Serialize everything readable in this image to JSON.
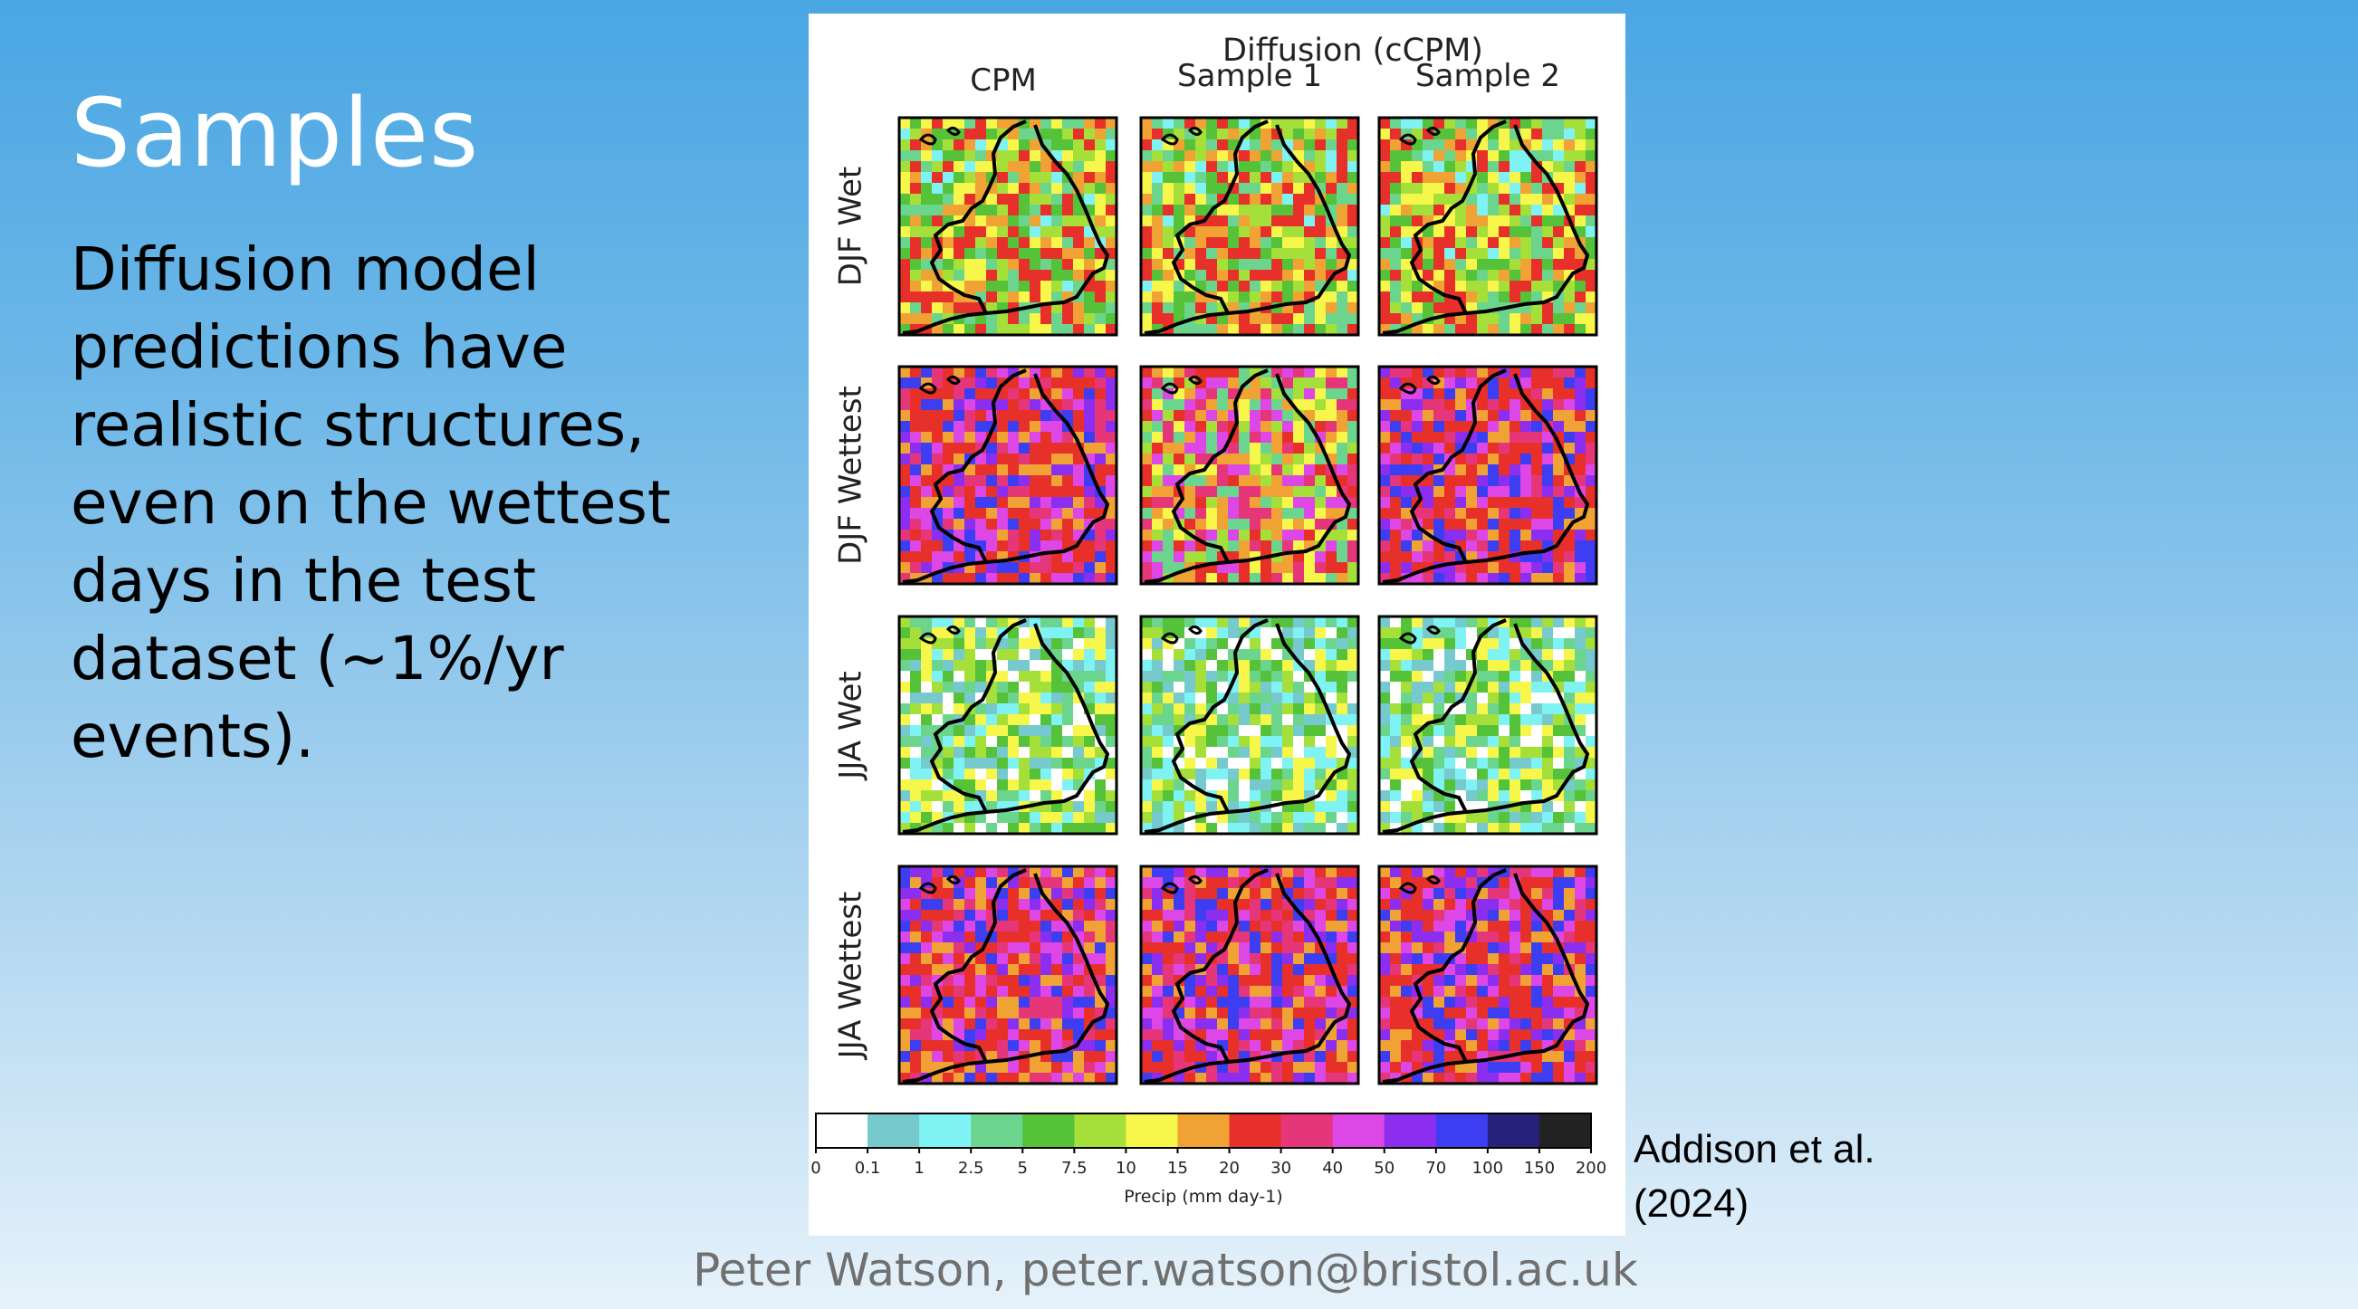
{
  "slide": {
    "title": "Samples",
    "body_lines": [
      "Diffusion model",
      "predictions have",
      "realistic structures,",
      "even on the wettest",
      "days in the test",
      "dataset (~1%/yr",
      "events)."
    ],
    "reference_lines": [
      "Addison et al.",
      "(2024)"
    ],
    "footer": "Peter Watson, peter.watson@bristol.ac.uk"
  },
  "figure": {
    "group_header": "Diffusion (cCPM)",
    "column_headers": [
      "CPM",
      "Sample 1",
      "Sample 2"
    ],
    "row_labels": [
      "DJF Wet",
      "DJF Wettest",
      "JJA Wet",
      "JJA Wettest"
    ],
    "colorbar": {
      "label": "Precip (mm day-1)",
      "ticks": [
        "0",
        "0.1",
        "1",
        "2.5",
        "5",
        "7.5",
        "10",
        "15",
        "20",
        "30",
        "40",
        "50",
        "70",
        "100",
        "150",
        "200"
      ],
      "colors": [
        "#ffffff",
        "#76c9cc",
        "#7ff3f3",
        "#6bd58d",
        "#55c23a",
        "#a5df3a",
        "#f7f64b",
        "#f0a235",
        "#e8302a",
        "#e6367a",
        "#dd47e5",
        "#8b2ef0",
        "#3d3ef2",
        "#26217a",
        "#222222"
      ]
    },
    "panel_palettes": {
      "dry": [
        "#ffffff",
        "#7ff3f3",
        "#76c9cc",
        "#6bd58d",
        "#55c23a",
        "#a5df3a",
        "#f7f64b"
      ],
      "moist": [
        "#7ff3f3",
        "#6bd58d",
        "#55c23a",
        "#a5df3a",
        "#f7f64b",
        "#f0a235",
        "#e8302a"
      ],
      "wet": [
        "#e8302a",
        "#e6367a",
        "#dd47e5",
        "#8b2ef0",
        "#f0a235",
        "#e8302a",
        "#3d3ef2"
      ],
      "mixed": [
        "#6bd58d",
        "#a5df3a",
        "#f7f64b",
        "#f0a235",
        "#e8302a",
        "#e6367a",
        "#dd47e5"
      ]
    },
    "panel_types": [
      [
        "moist",
        "moist",
        "moist"
      ],
      [
        "wet",
        "mixed",
        "wet"
      ],
      [
        "dry",
        "dry",
        "dry"
      ],
      [
        "wet",
        "wet",
        "wet"
      ]
    ]
  }
}
